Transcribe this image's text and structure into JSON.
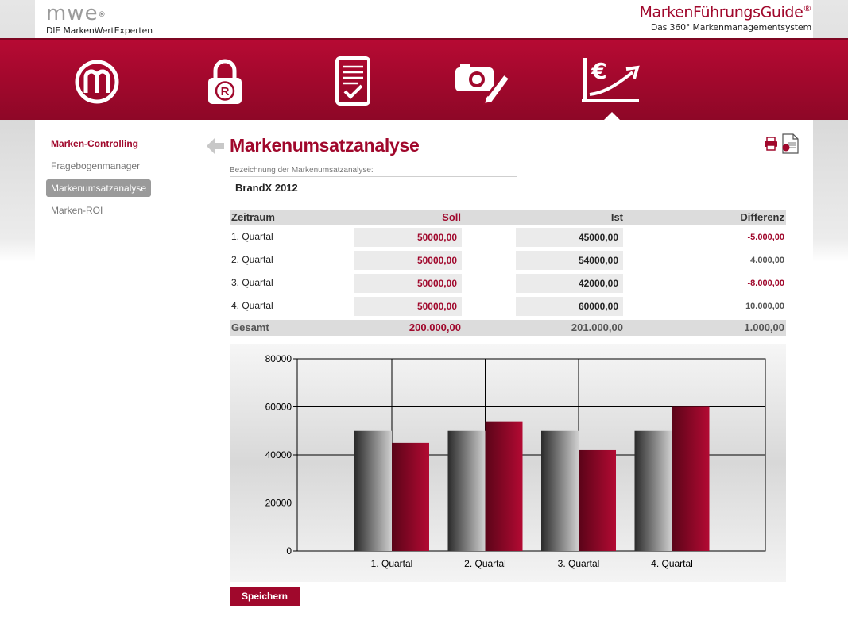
{
  "header": {
    "mwe_logo": "MWE",
    "mwe_tagline": "DIE MarkenWertExperten",
    "product_title": "MarkenFührungsGuide",
    "product_subtitle": "Das 360° Markenmanagementsystem"
  },
  "nav_icons": [
    "brand-m-icon",
    "trademark-lock-icon",
    "checklist-tablet-icon",
    "camera-pencil-icon",
    "euro-growth-chart-icon"
  ],
  "sidebar": {
    "items": [
      {
        "label": "Marken-Controlling",
        "type": "heading"
      },
      {
        "label": "Fragebogenmanager",
        "type": "link"
      },
      {
        "label": "Markenumsatzanalyse",
        "type": "active"
      },
      {
        "label": "Marken-ROI",
        "type": "link"
      }
    ]
  },
  "main": {
    "title": "Markenumsatzanalyse",
    "field_label": "Bezeichnung der Markenumsatzanalyse:",
    "field_value": "BrandX 2012",
    "save_label": "Speichern"
  },
  "table": {
    "headers": {
      "period": "Zeitraum",
      "soll": "Soll",
      "ist": "Ist",
      "diff": "Differenz"
    },
    "rows": [
      {
        "period": "1. Quartal",
        "soll": "50000,00",
        "ist": "45000,00",
        "diff": "-5.000,00",
        "negative": true
      },
      {
        "period": "2. Quartal",
        "soll": "50000,00",
        "ist": "54000,00",
        "diff": "4.000,00",
        "negative": false
      },
      {
        "period": "3. Quartal",
        "soll": "50000,00",
        "ist": "42000,00",
        "diff": "-8.000,00",
        "negative": true
      },
      {
        "period": "4. Quartal",
        "soll": "50000,00",
        "ist": "60000,00",
        "diff": "10.000,00",
        "negative": false
      }
    ],
    "total": {
      "label": "Gesamt",
      "soll": "200.000,00",
      "ist": "201.000,00",
      "diff": "1.000,00"
    }
  },
  "colors": {
    "brand_red": "#a0082c",
    "soll_bar": "#8a8a8a",
    "ist_bar": "#a0082c"
  },
  "chart_data": {
    "type": "bar",
    "categories": [
      "1. Quartal",
      "2. Quartal",
      "3. Quartal",
      "4. Quartal"
    ],
    "series": [
      {
        "values": [
          50000,
          50000,
          50000,
          50000
        ]
      },
      {
        "values": [
          45000,
          54000,
          42000,
          60000
        ]
      }
    ],
    "ylim": [
      0,
      80000
    ],
    "yticks": [
      0,
      20000,
      40000,
      60000,
      80000
    ],
    "grid": true
  }
}
